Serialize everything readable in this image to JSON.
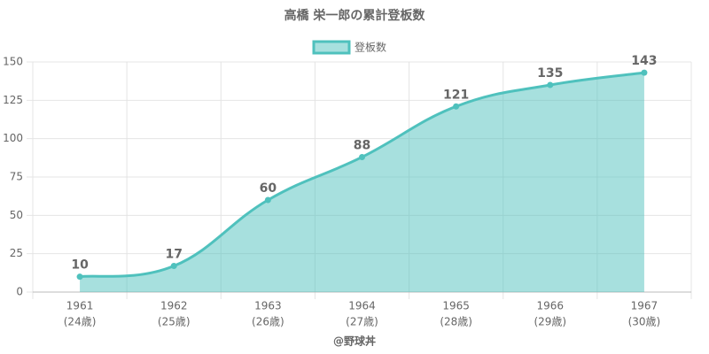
{
  "chart_data": {
    "type": "area",
    "title": "高橋 栄一郎の累計登板数",
    "categories": [
      "1961",
      "1962",
      "1963",
      "1964",
      "1965",
      "1966",
      "1967"
    ],
    "sub_labels": [
      "(24歳)",
      "(25歳)",
      "(26歳)",
      "(27歳)",
      "(28歳)",
      "(29歳)",
      "(30歳)"
    ],
    "x_label": "@野球丼",
    "series": [
      {
        "name": "登板数",
        "color": "#4fc1bd",
        "values": [
          10,
          17,
          60,
          88,
          121,
          135,
          143
        ]
      }
    ],
    "ylim": [
      0,
      150
    ],
    "yticks": [
      0,
      25,
      50,
      75,
      100,
      125,
      150
    ],
    "grid": true,
    "legend": "top"
  }
}
